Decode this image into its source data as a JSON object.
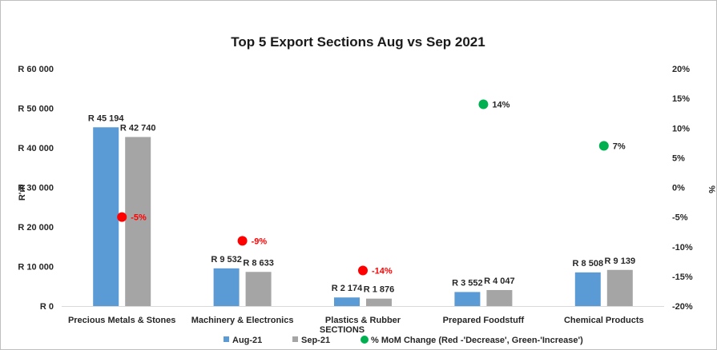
{
  "chart_data": {
    "type": "bar",
    "title": "Top 5 Export Sections  Aug vs Sep 2021",
    "xlabel": "SECTIONS",
    "ylabel": "R'm",
    "y2label": "%",
    "categories": [
      "Precious Metals & Stones",
      "Machinery & Electronics",
      "Plastics & Rubber",
      "Prepared Foodstuff",
      "Chemical Products"
    ],
    "ylim": [
      0,
      60000
    ],
    "yticks": [
      0,
      10000,
      20000,
      30000,
      40000,
      50000,
      60000
    ],
    "ytick_labels": [
      "R 0",
      "R 10 000",
      "R 20 000",
      "R 30 000",
      "R 40 000",
      "R 50 000",
      "R 60 000"
    ],
    "y2lim": [
      -20,
      20
    ],
    "y2ticks": [
      -20,
      -15,
      -10,
      -5,
      0,
      5,
      10,
      15,
      20
    ],
    "y2tick_labels": [
      "-20%",
      "-15%",
      "-10%",
      "-5%",
      "0%",
      "5%",
      "10%",
      "15%",
      "20%"
    ],
    "series": [
      {
        "name": "Aug-21",
        "type": "bar",
        "color": "#5b9bd5",
        "values": [
          45194,
          9532,
          2174,
          3552,
          8508
        ],
        "labels": [
          "R 45 194",
          "R 9 532",
          "R 2 174",
          "R 3 552",
          "R 8 508"
        ]
      },
      {
        "name": "Sep-21",
        "type": "bar",
        "color": "#a5a5a5",
        "values": [
          42740,
          8633,
          1876,
          4047,
          9139
        ],
        "labels": [
          "R 42 740",
          "R 8 633",
          "R 1 876",
          "R 4 047",
          "R 9 139"
        ]
      },
      {
        "name": "% MoM Change (Red -'Decrease', Green-'Increase')",
        "type": "scatter",
        "axis": "secondary",
        "values": [
          -5,
          -9,
          -14,
          14,
          7
        ],
        "labels": [
          "-5%",
          "-9%",
          "-14%",
          "14%",
          "7%"
        ],
        "colors": [
          "#ff0000",
          "#ff0000",
          "#ff0000",
          "#00b050",
          "#00b050"
        ],
        "legend_color": "#00b050"
      }
    ],
    "legend": "bottom",
    "grid": false
  }
}
